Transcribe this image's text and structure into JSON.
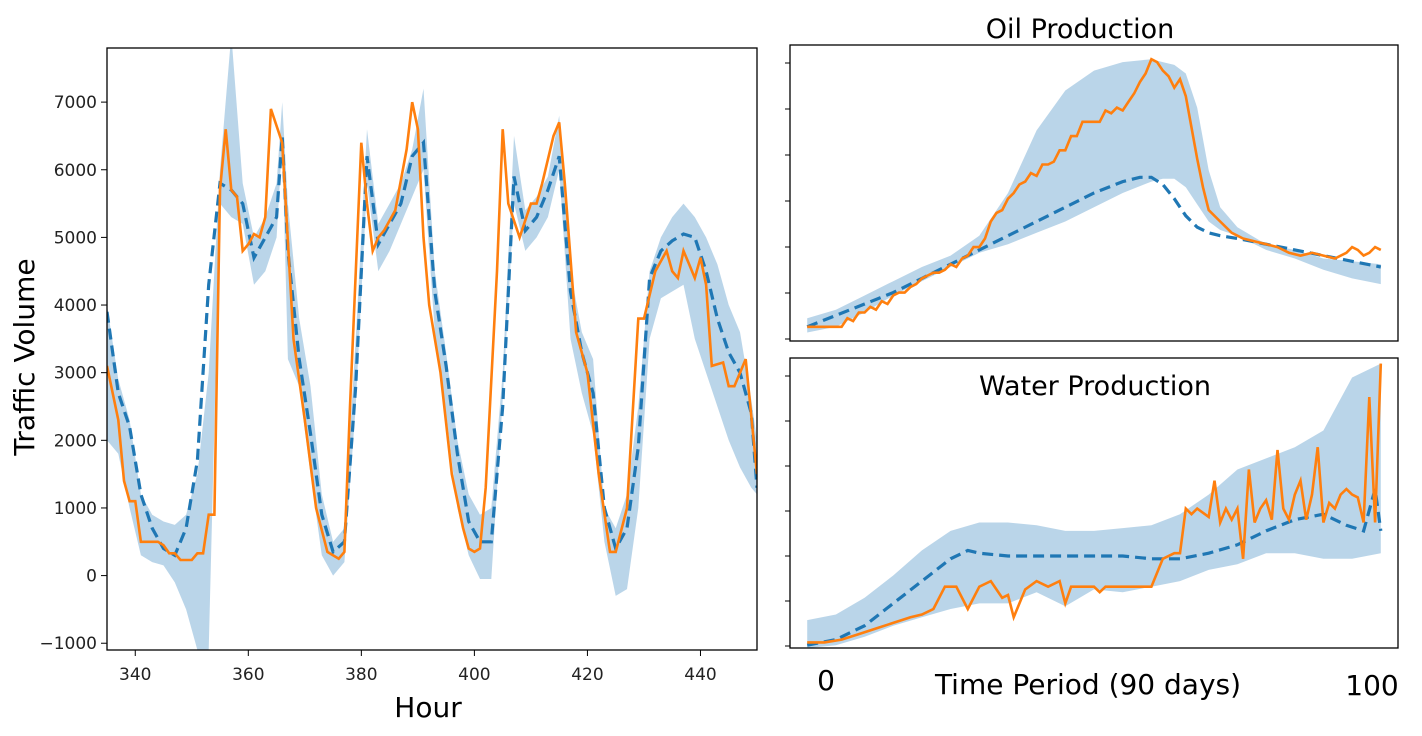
{
  "chart_data": [
    {
      "type": "line",
      "title": "",
      "xlabel": "Hour",
      "ylabel": "Traffic Volume",
      "xlim": [
        335,
        450
      ],
      "ylim": [
        -1100,
        7800
      ],
      "xticks": [
        340,
        360,
        380,
        400,
        420,
        440
      ],
      "yticks": [
        -1000,
        0,
        1000,
        2000,
        3000,
        4000,
        5000,
        6000,
        7000
      ],
      "grid": false,
      "series": [
        {
          "role": "interval",
          "color": "#a9cbe4",
          "x": [
            335,
            337,
            339,
            341,
            343,
            345,
            347,
            349,
            351,
            353,
            355,
            357,
            359,
            361,
            363,
            365,
            366,
            367,
            369,
            371,
            373,
            375,
            377,
            379,
            381,
            383,
            385,
            387,
            389,
            391,
            393,
            395,
            397,
            399,
            401,
            403,
            405,
            407,
            409,
            411,
            413,
            415,
            417,
            419,
            421,
            423,
            425,
            427,
            429,
            431,
            433,
            435,
            437,
            439,
            441,
            443,
            445,
            447,
            449,
            450
          ],
          "upper": [
            4000,
            2900,
            2300,
            1200,
            900,
            800,
            750,
            900,
            1500,
            3000,
            6000,
            8000,
            5800,
            5000,
            5300,
            5800,
            7000,
            5500,
            3800,
            2800,
            1200,
            500,
            700,
            3500,
            6600,
            5200,
            5500,
            5800,
            6300,
            7200,
            4500,
            3300,
            2000,
            1200,
            900,
            1000,
            3000,
            6500,
            5400,
            5600,
            5900,
            6800,
            4500,
            3600,
            3200,
            1000,
            700,
            1200,
            2500,
            4500,
            5000,
            5300,
            5500,
            5300,
            5000,
            4600,
            4000,
            3600,
            2600,
            2000
          ],
          "lower": [
            2000,
            1800,
            1000,
            300,
            200,
            150,
            -100,
            -500,
            -1100,
            -1100,
            5500,
            5300,
            5200,
            4300,
            4500,
            5000,
            6400,
            3200,
            2800,
            1500,
            300,
            0,
            200,
            2500,
            5800,
            4500,
            4800,
            5200,
            5600,
            6000,
            3600,
            2400,
            1000,
            300,
            -50,
            -50,
            2600,
            5500,
            4800,
            5000,
            5300,
            6000,
            3500,
            2700,
            2100,
            500,
            -300,
            -200,
            1000,
            3500,
            4100,
            4200,
            4300,
            3500,
            3000,
            2500,
            2000,
            1600,
            1300,
            1200
          ]
        },
        {
          "role": "prediction",
          "color": "#1f77b4",
          "x": [
            335,
            337,
            339,
            341,
            343,
            345,
            347,
            349,
            351,
            353,
            355,
            357,
            359,
            361,
            363,
            365,
            366,
            367,
            369,
            371,
            373,
            375,
            377,
            379,
            381,
            383,
            385,
            387,
            389,
            391,
            393,
            395,
            397,
            399,
            401,
            403,
            405,
            407,
            409,
            411,
            413,
            415,
            417,
            419,
            421,
            423,
            425,
            427,
            429,
            431,
            433,
            435,
            437,
            439,
            441,
            443,
            445,
            447,
            449,
            450
          ],
          "values": [
            3900,
            2700,
            2200,
            1200,
            700,
            400,
            300,
            700,
            1700,
            4300,
            5800,
            5700,
            5500,
            4700,
            5000,
            5300,
            6500,
            4800,
            3200,
            2100,
            900,
            350,
            500,
            2800,
            6200,
            4900,
            5200,
            5500,
            6200,
            6400,
            4200,
            3100,
            1800,
            800,
            500,
            500,
            2500,
            5900,
            5100,
            5300,
            5700,
            6200,
            4200,
            3300,
            2700,
            1000,
            400,
            700,
            1900,
            4400,
            4800,
            4950,
            5050,
            5000,
            4500,
            3800,
            3300,
            3000,
            2400,
            1300
          ]
        },
        {
          "role": "observed",
          "color": "#ff7f0e",
          "x": [
            335,
            337,
            338,
            339,
            340,
            341,
            342,
            344,
            345,
            346,
            347,
            348,
            349,
            350,
            351,
            352,
            353,
            354,
            355,
            356,
            357,
            358,
            359,
            360,
            361,
            362,
            363,
            364,
            366,
            368,
            370,
            372,
            374,
            376,
            377,
            378,
            380,
            381,
            382,
            383,
            384,
            386,
            388,
            389,
            390,
            391,
            392,
            394,
            396,
            398,
            399,
            400,
            401,
            402,
            404,
            405,
            406,
            408,
            410,
            411,
            412,
            414,
            415,
            416,
            418,
            420,
            422,
            424,
            425,
            427,
            429,
            430,
            432,
            434,
            435,
            436,
            437,
            438,
            439,
            440,
            441,
            442,
            444,
            445,
            446,
            448,
            450
          ],
          "values": [
            3100,
            2300,
            1400,
            1100,
            1100,
            500,
            500,
            500,
            450,
            330,
            330,
            230,
            230,
            230,
            330,
            330,
            900,
            900,
            5700,
            6600,
            5700,
            5600,
            4800,
            4900,
            5050,
            5000,
            5300,
            6900,
            6400,
            3500,
            2300,
            1000,
            350,
            250,
            350,
            2500,
            6400,
            5500,
            4800,
            5000,
            5100,
            5400,
            6300,
            7000,
            6600,
            5000,
            4000,
            3000,
            1500,
            700,
            400,
            350,
            400,
            1300,
            4500,
            6600,
            5500,
            5000,
            5500,
            5500,
            5800,
            6500,
            6700,
            5800,
            3600,
            3000,
            1500,
            350,
            350,
            1000,
            3800,
            3800,
            4500,
            4800,
            4500,
            4400,
            4800,
            4600,
            4400,
            4700,
            4300,
            3100,
            3150,
            2800,
            2800,
            3200,
            1500
          ]
        }
      ]
    },
    {
      "type": "line",
      "title": "Oil Production",
      "xlabel": "",
      "ylabel": "",
      "xlim": [
        -3,
        103
      ],
      "ylim": [
        -2,
        102
      ],
      "yticks_labeled": false,
      "grid": false,
      "series": [
        {
          "role": "interval",
          "color": "#a9cbe4",
          "x": [
            0,
            5,
            10,
            15,
            20,
            25,
            30,
            35,
            40,
            45,
            50,
            55,
            60,
            62,
            64,
            66,
            68,
            70,
            72,
            75,
            80,
            85,
            90,
            95,
            100
          ],
          "upper": [
            6,
            9,
            14,
            19,
            24,
            28,
            35,
            50,
            72,
            86,
            93,
            96,
            97,
            96,
            95,
            92,
            80,
            58,
            45,
            38,
            32,
            30,
            27,
            26,
            25
          ],
          "lower": [
            1,
            3,
            8,
            14,
            19,
            24,
            29,
            32,
            36,
            40,
            45,
            50,
            54,
            55,
            55,
            52,
            46,
            40,
            37,
            35,
            30,
            27,
            23,
            20,
            18
          ]
        },
        {
          "role": "prediction",
          "color": "#1f77b4",
          "x": [
            0,
            5,
            10,
            15,
            20,
            25,
            30,
            35,
            40,
            45,
            50,
            55,
            58,
            60,
            62,
            64,
            66,
            68,
            70,
            72,
            75,
            80,
            85,
            90,
            95,
            100
          ],
          "values": [
            3,
            7,
            11,
            15,
            20,
            25,
            30,
            35,
            40,
            45,
            50,
            54,
            55.5,
            55.5,
            53,
            48,
            42,
            38,
            36,
            35,
            34,
            32,
            30,
            28,
            26,
            24
          ]
        },
        {
          "role": "observed",
          "color": "#ff7f0e",
          "x": [
            0,
            2,
            4,
            6,
            7,
            8,
            9,
            10,
            11,
            12,
            13,
            14,
            15,
            16,
            17,
            18,
            19,
            20,
            21,
            22,
            23,
            24,
            25,
            26,
            27,
            28,
            29,
            30,
            31,
            32,
            33,
            34,
            35,
            36,
            37,
            38,
            39,
            40,
            41,
            42,
            43,
            44,
            45,
            46,
            47,
            48,
            49,
            50,
            51,
            52,
            53,
            54,
            55,
            56,
            57,
            58,
            59,
            60,
            61,
            62,
            63,
            64,
            65,
            66,
            67,
            68,
            69,
            70,
            72,
            74,
            76,
            78,
            80,
            82,
            84,
            86,
            88,
            90,
            92,
            94,
            95,
            96,
            97,
            98,
            99,
            100
          ],
          "values": [
            3,
            3,
            3,
            3,
            6,
            5,
            8,
            8,
            10,
            9,
            12,
            11,
            14,
            15,
            15,
            17,
            18,
            20,
            21,
            22,
            22,
            23,
            25,
            24,
            27,
            28,
            31,
            31,
            34,
            40,
            43,
            44,
            48,
            50,
            53,
            54,
            57,
            56,
            60,
            60,
            61,
            65,
            65,
            70,
            70,
            75,
            75,
            75,
            75,
            79,
            78,
            80,
            79,
            82,
            85,
            89,
            92,
            97,
            96,
            93,
            91,
            87,
            90,
            84,
            73,
            62,
            52,
            44,
            40,
            36,
            34,
            33,
            32,
            31,
            29,
            28,
            29,
            28,
            27,
            29,
            31,
            30,
            28,
            29,
            31,
            30
          ]
        }
      ]
    },
    {
      "type": "line",
      "title": "Water Production",
      "xlabel": "Time Period (90 days)",
      "ylabel": "",
      "xlim": [
        -3,
        103
      ],
      "ylim": [
        -2,
        102
      ],
      "xticks": [
        0,
        100
      ],
      "yticks_labeled": false,
      "grid": false,
      "series": [
        {
          "role": "interval",
          "color": "#a9cbe4",
          "x": [
            0,
            5,
            10,
            15,
            20,
            25,
            30,
            35,
            40,
            45,
            50,
            55,
            60,
            65,
            70,
            75,
            80,
            85,
            90,
            95,
            100
          ],
          "upper": [
            8,
            10,
            16,
            24,
            33,
            40,
            43,
            43,
            42,
            40,
            40,
            41,
            42,
            46,
            53,
            62,
            66,
            70,
            76,
            95,
            100
          ],
          "lower": [
            -2,
            -1,
            2,
            6,
            9,
            12,
            14,
            14,
            18,
            13,
            19,
            18,
            20,
            22,
            26,
            28,
            32,
            32,
            30,
            30,
            32
          ]
        },
        {
          "role": "prediction",
          "color": "#1f77b4",
          "x": [
            0,
            5,
            10,
            15,
            20,
            25,
            28,
            30,
            35,
            40,
            45,
            50,
            55,
            60,
            65,
            70,
            75,
            80,
            85,
            90,
            94,
            97,
            99,
            100
          ],
          "values": [
            -1,
            1,
            6,
            14,
            22,
            30,
            33,
            32,
            31,
            31,
            31,
            31,
            31,
            30,
            30,
            32,
            35,
            40,
            44,
            46,
            42,
            40,
            55,
            40
          ]
        },
        {
          "role": "observed",
          "color": "#ff7f0e",
          "x": [
            0,
            3,
            6,
            9,
            12,
            15,
            18,
            20,
            22,
            24,
            25,
            26,
            28,
            30,
            32,
            34,
            35,
            36,
            38,
            40,
            42,
            44,
            45,
            46,
            48,
            50,
            51,
            52,
            54,
            56,
            58,
            60,
            62,
            64,
            65,
            66,
            67,
            68,
            70,
            71,
            72,
            73,
            74,
            75,
            76,
            77,
            78,
            79,
            80,
            81,
            82,
            83,
            84,
            85,
            86,
            87,
            88,
            89,
            90,
            91,
            92,
            93,
            94,
            95,
            96,
            97,
            98,
            99,
            100
          ],
          "values": [
            0,
            0,
            1,
            3,
            5,
            7,
            9,
            10,
            12,
            20,
            20,
            20,
            12,
            20,
            22,
            16,
            17,
            9,
            19,
            22,
            20,
            22,
            14,
            20,
            20,
            20,
            18,
            20,
            20,
            20,
            20,
            20,
            30,
            32,
            32,
            48,
            46,
            48,
            45,
            58,
            43,
            48,
            44,
            48,
            30,
            62,
            43,
            48,
            51,
            44,
            69,
            48,
            44,
            53,
            58,
            44,
            53,
            70,
            43,
            50,
            48,
            53,
            55,
            53,
            52,
            43,
            88,
            43,
            100
          ]
        }
      ]
    }
  ]
}
